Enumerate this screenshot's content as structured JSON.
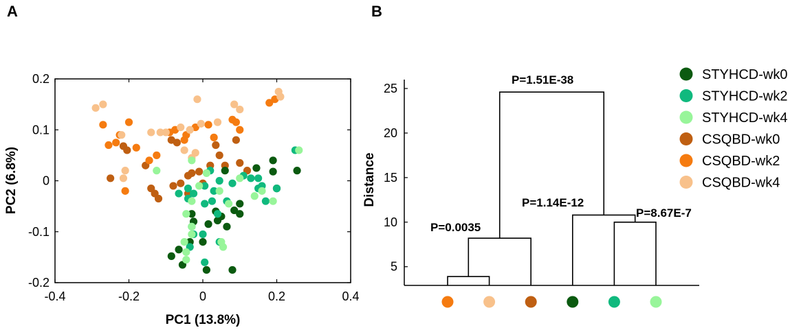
{
  "panels": {
    "a": "A",
    "b": "B"
  },
  "colors": {
    "STYHCD-wk0": "#0b5a10",
    "STYHCD-wk2": "#10b97e",
    "STYHCD-wk4": "#98f59a",
    "CSQBD-wk0": "#bf5f12",
    "CSQBD-wk2": "#f57b10",
    "CSQBD-wk4": "#f8c18b"
  },
  "chart_data": [
    {
      "type": "scatter",
      "panel": "A",
      "xlabel": "PC1 (13.8%)",
      "ylabel": "PC2 (6.8%)",
      "xlim": [
        -0.4,
        0.4
      ],
      "ylim": [
        -0.2,
        0.2
      ],
      "xticks": [
        -0.4,
        -0.2,
        0,
        0.2,
        0.4
      ],
      "xtick_labels": [
        "-0.4",
        "-0.2",
        "0",
        "0.2",
        "0.4"
      ],
      "yticks": [
        -0.2,
        -0.1,
        0,
        0.1,
        0.2
      ],
      "ytick_labels": [
        "-0.2",
        "-0.1",
        "0",
        "0.1",
        "0.2"
      ],
      "grid": false,
      "series": [
        {
          "name": "CSQBD-wk0",
          "points": [
            [
              -0.25,
              0.005
            ],
            [
              -0.215,
              0.068
            ],
            [
              -0.205,
              0.06
            ],
            [
              -0.155,
              0.03
            ],
            [
              -0.14,
              -0.015
            ],
            [
              -0.13,
              -0.025
            ],
            [
              -0.12,
              -0.035
            ],
            [
              -0.085,
              0.08
            ],
            [
              -0.04,
              0.01
            ],
            [
              -0.04,
              -0.025
            ],
            [
              -0.06,
              -0.005
            ],
            [
              -0.03,
              0.015
            ],
            [
              -0.01,
              0.018
            ],
            [
              0.0,
              -0.005
            ],
            [
              0.045,
              0.05
            ],
            [
              0.06,
              0.03
            ],
            [
              0.09,
              0.08
            ],
            [
              0.1,
              0.035
            ],
            [
              0.12,
              0.02
            ],
            [
              -0.07,
              0.075
            ],
            [
              0.02,
              0.03
            ],
            [
              0.035,
              0.07
            ],
            [
              -0.08,
              -0.01
            ]
          ]
        },
        {
          "name": "CSQBD-wk2",
          "points": [
            [
              -0.27,
              0.11
            ],
            [
              -0.255,
              0.07
            ],
            [
              -0.235,
              0.075
            ],
            [
              -0.225,
              0.09
            ],
            [
              -0.2,
              0.115
            ],
            [
              -0.18,
              0.065
            ],
            [
              -0.145,
              0.04
            ],
            [
              -0.125,
              0.05
            ],
            [
              -0.09,
              0.095
            ],
            [
              -0.075,
              0.1
            ],
            [
              -0.045,
              0.09
            ],
            [
              -0.02,
              0.105
            ],
            [
              0.015,
              0.11
            ],
            [
              0.03,
              0.085
            ],
            [
              0.08,
              0.12
            ],
            [
              0.09,
              0.115
            ],
            [
              0.1,
              0.1
            ],
            [
              0.18,
              0.153
            ],
            [
              0.195,
              0.16
            ],
            [
              -0.21,
              -0.02
            ],
            [
              -0.05,
              0.08
            ]
          ]
        },
        {
          "name": "CSQBD-wk4",
          "points": [
            [
              -0.29,
              0.143
            ],
            [
              -0.27,
              0.15
            ],
            [
              -0.22,
              0.09
            ],
            [
              -0.21,
              0.02
            ],
            [
              -0.215,
              0.005
            ],
            [
              -0.14,
              0.095
            ],
            [
              -0.115,
              0.095
            ],
            [
              -0.1,
              0.095
            ],
            [
              -0.06,
              0.105
            ],
            [
              -0.035,
              0.1
            ],
            [
              -0.005,
              0.112
            ],
            [
              0.04,
              0.115
            ],
            [
              0.085,
              0.15
            ],
            [
              0.1,
              0.14
            ],
            [
              -0.05,
              0.06
            ],
            [
              -0.02,
              0.055
            ],
            [
              -0.015,
              0.16
            ],
            [
              0.205,
              0.175
            ],
            [
              0.21,
              0.165
            ],
            [
              -0.03,
              0.045
            ]
          ]
        },
        {
          "name": "STYHCD-wk0",
          "points": [
            [
              -0.085,
              -0.148
            ],
            [
              -0.065,
              -0.135
            ],
            [
              -0.055,
              -0.165
            ],
            [
              -0.035,
              -0.12
            ],
            [
              -0.025,
              -0.08
            ],
            [
              -0.03,
              -0.065
            ],
            [
              0.0,
              -0.12
            ],
            [
              0.015,
              -0.085
            ],
            [
              0.035,
              -0.06
            ],
            [
              0.04,
              -0.078
            ],
            [
              0.05,
              -0.07
            ],
            [
              0.065,
              -0.09
            ],
            [
              0.08,
              -0.175
            ],
            [
              0.085,
              -0.058
            ],
            [
              0.1,
              -0.065
            ],
            [
              0.1,
              -0.045
            ],
            [
              0.145,
              0.025
            ],
            [
              0.19,
              0.04
            ],
            [
              0.2,
              -0.015
            ],
            [
              0.19,
              0.018
            ],
            [
              0.255,
              0.02
            ],
            [
              0.01,
              -0.175
            ],
            [
              0.06,
              0.02
            ]
          ]
        },
        {
          "name": "STYHCD-wk2",
          "points": [
            [
              0.15,
              0.005
            ],
            [
              0.16,
              -0.01
            ],
            [
              0.13,
              0.005
            ],
            [
              0.11,
              0.01
            ],
            [
              0.08,
              -0.005
            ],
            [
              0.045,
              0.0
            ],
            [
              0.02,
              0.02
            ],
            [
              0.005,
              -0.01
            ],
            [
              -0.04,
              -0.015
            ],
            [
              -0.065,
              -0.025
            ],
            [
              -0.04,
              -0.035
            ],
            [
              -0.025,
              -0.025
            ],
            [
              0.025,
              -0.04
            ],
            [
              0.03,
              -0.02
            ],
            [
              0.005,
              -0.045
            ],
            [
              0.04,
              -0.065
            ],
            [
              0.065,
              -0.04
            ],
            [
              0.15,
              -0.015
            ],
            [
              0.17,
              -0.04
            ],
            [
              0.2,
              -0.015
            ],
            [
              0.25,
              0.06
            ],
            [
              -0.025,
              -0.105
            ],
            [
              0.0,
              -0.105
            ],
            [
              -0.035,
              -0.13
            ],
            [
              0.005,
              -0.16
            ],
            [
              -0.03,
              -0.09
            ],
            [
              0.045,
              -0.12
            ]
          ]
        },
        {
          "name": "STYHCD-wk4",
          "points": [
            [
              -0.125,
              0.02
            ],
            [
              -0.03,
              0.04
            ],
            [
              0.01,
              0.015
            ],
            [
              -0.01,
              -0.01
            ],
            [
              -0.03,
              -0.04
            ],
            [
              0.045,
              -0.02
            ],
            [
              0.07,
              -0.045
            ],
            [
              0.1,
              0.005
            ],
            [
              0.14,
              -0.03
            ],
            [
              0.16,
              -0.02
            ],
            [
              0.19,
              -0.04
            ],
            [
              0.26,
              0.06
            ],
            [
              -0.045,
              -0.065
            ],
            [
              -0.03,
              -0.09
            ],
            [
              -0.03,
              -0.105
            ],
            [
              -0.045,
              -0.14
            ],
            [
              0.05,
              -0.12
            ],
            [
              0.055,
              -0.13
            ],
            [
              -0.05,
              -0.12
            ],
            [
              -0.045,
              -0.155
            ]
          ]
        }
      ]
    },
    {
      "type": "dendrogram",
      "panel": "B",
      "ylabel": "Distance",
      "ylim": [
        2.9,
        26
      ],
      "yticks": [
        5,
        10,
        15,
        20,
        25
      ],
      "ytick_labels": [
        "5",
        "10",
        "15",
        "20",
        "25"
      ],
      "leaves": [
        "CSQBD-wk2",
        "CSQBD-wk4",
        "CSQBD-wk0",
        "STYHCD-wk0",
        "STYHCD-wk2",
        "STYHCD-wk4"
      ],
      "baseline": 2.9,
      "merges": [
        {
          "children": [
            "leaf0",
            "leaf1"
          ],
          "height": 3.9,
          "label": ""
        },
        {
          "children": [
            "m0",
            "leaf2"
          ],
          "height": 8.2,
          "label": "P=0.0035"
        },
        {
          "children": [
            "leaf4",
            "leaf5"
          ],
          "height": 10.0,
          "label": "P=8.67E-7"
        },
        {
          "children": [
            "leaf3",
            "m2"
          ],
          "height": 10.8,
          "label": "P=1.14E-12"
        },
        {
          "children": [
            "m1",
            "m3"
          ],
          "height": 24.6,
          "label": "P=1.51E-38"
        }
      ]
    }
  ],
  "legend": {
    "position": "top-right",
    "items": [
      "STYHCD-wk0",
      "STYHCD-wk2",
      "STYHCD-wk4",
      "CSQBD-wk0",
      "CSQBD-wk2",
      "CSQBD-wk4"
    ]
  }
}
